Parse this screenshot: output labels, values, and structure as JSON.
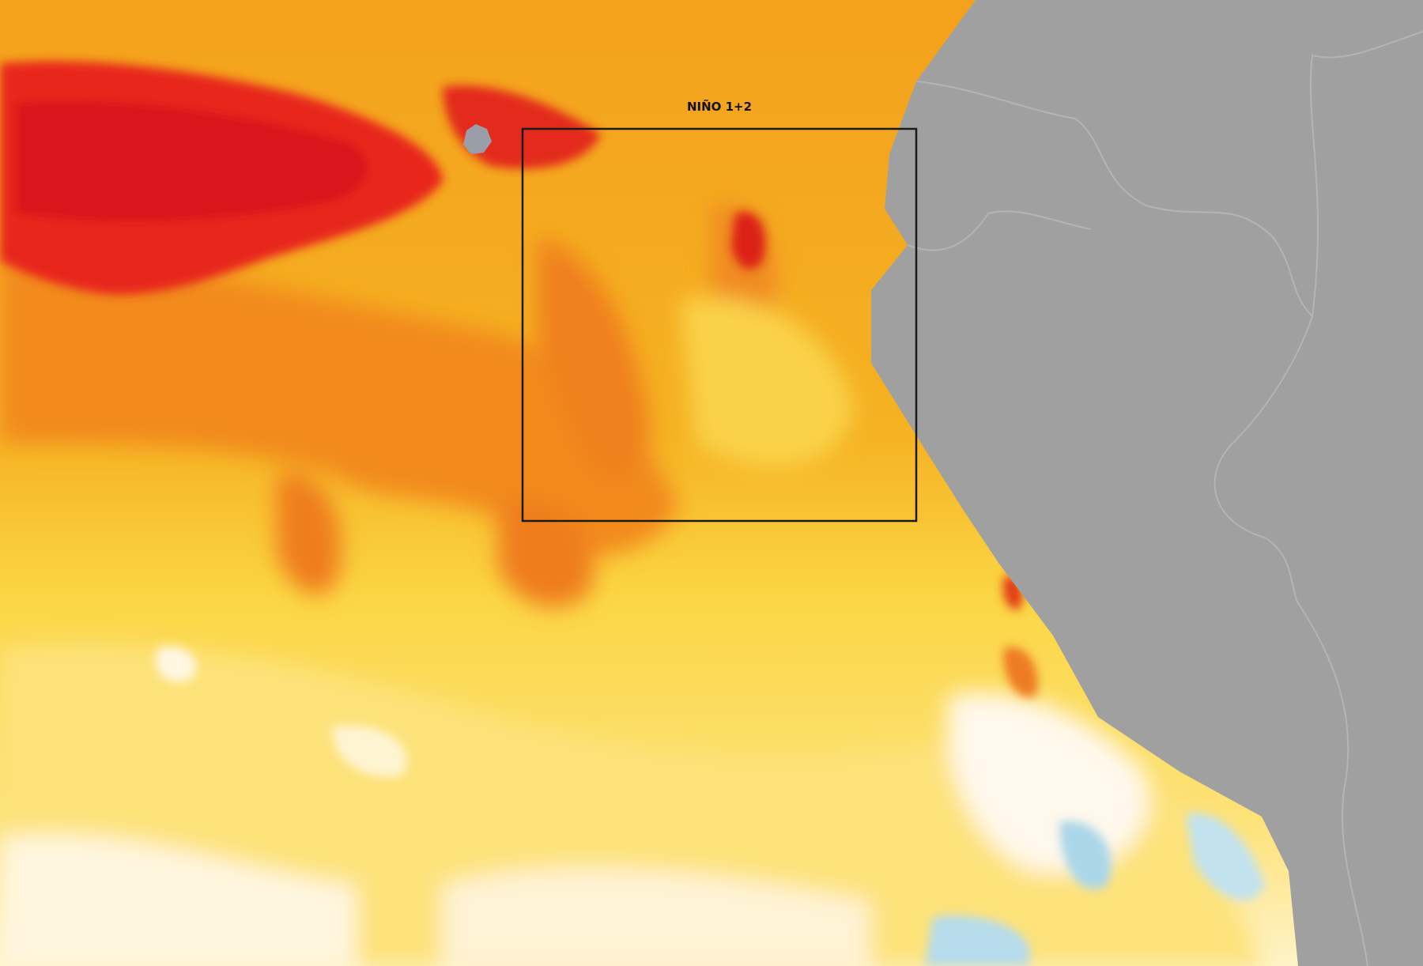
{
  "map": {
    "region_label": "NIÑO 1+2"
  }
}
